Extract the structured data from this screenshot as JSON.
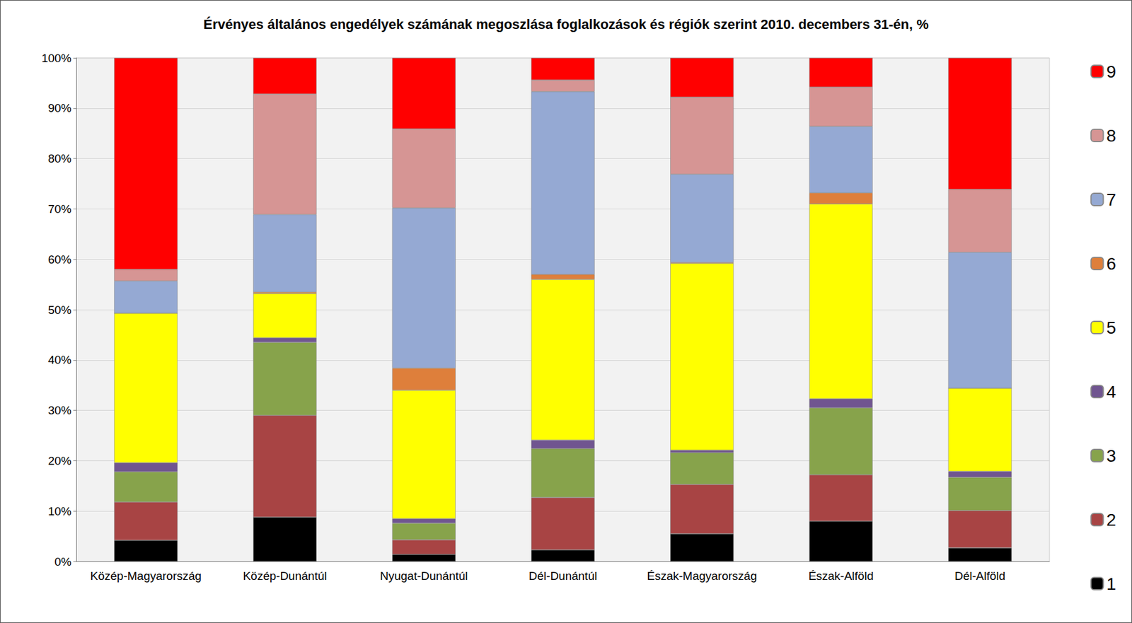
{
  "chart_data": {
    "type": "bar",
    "title": "Érvényes általános engedélyek számának megoszlása foglalkozások és régiók szerint 2010. decembers 31-én, %",
    "stacked": true,
    "grid": true,
    "legend": "right",
    "categories": [
      "Közép-Magyarország",
      "Közép-Dunántúl",
      "Nyugat-Dunántúl",
      "Dél-Dunántúl",
      "Észak-Magyarország",
      "Észak-Alföld",
      "Dél-Alföld"
    ],
    "ylim": [
      0,
      100
    ],
    "yticks": [
      {
        "value": 0,
        "label": "0%"
      },
      {
        "value": 10,
        "label": "10%"
      },
      {
        "value": 20,
        "label": "20%"
      },
      {
        "value": 30,
        "label": "30%"
      },
      {
        "value": 40,
        "label": "40%"
      },
      {
        "value": 50,
        "label": "50%"
      },
      {
        "value": 60,
        "label": "60%"
      },
      {
        "value": 70,
        "label": "70%"
      },
      {
        "value": 80,
        "label": "80%"
      },
      {
        "value": 90,
        "label": "90%"
      },
      {
        "value": 100,
        "label": "100%"
      }
    ],
    "series": [
      {
        "name": "1",
        "color": "#000000",
        "values": [
          4.2,
          8.8,
          1.4,
          2.3,
          5.5,
          8.0,
          2.7
        ]
      },
      {
        "name": "2",
        "color": "#a84444",
        "values": [
          7.6,
          20.2,
          2.9,
          10.4,
          9.8,
          9.2,
          7.4
        ]
      },
      {
        "name": "3",
        "color": "#87a34b",
        "values": [
          6.0,
          14.5,
          3.3,
          9.7,
          6.3,
          13.3,
          6.6
        ]
      },
      {
        "name": "4",
        "color": "#705590",
        "values": [
          1.8,
          0.9,
          0.9,
          1.7,
          0.5,
          1.8,
          1.2
        ]
      },
      {
        "name": "5",
        "color": "#ffff00",
        "values": [
          29.7,
          8.8,
          25.5,
          31.9,
          37.1,
          38.7,
          16.5
        ]
      },
      {
        "name": "6",
        "color": "#de7f3b",
        "values": [
          0,
          0.3,
          4.4,
          1.0,
          0.2,
          2.2,
          0
        ]
      },
      {
        "name": "7",
        "color": "#95a9d3",
        "values": [
          6.4,
          15.4,
          31.8,
          36.3,
          17.5,
          13.2,
          27.0
        ]
      },
      {
        "name": "8",
        "color": "#d69594",
        "values": [
          2.3,
          23.9,
          15.7,
          2.3,
          15.3,
          7.8,
          12.5
        ]
      },
      {
        "name": "9",
        "color": "#ff0000",
        "values": [
          42.0,
          7.2,
          14.1,
          4.4,
          7.8,
          5.8,
          26.1
        ]
      }
    ]
  }
}
